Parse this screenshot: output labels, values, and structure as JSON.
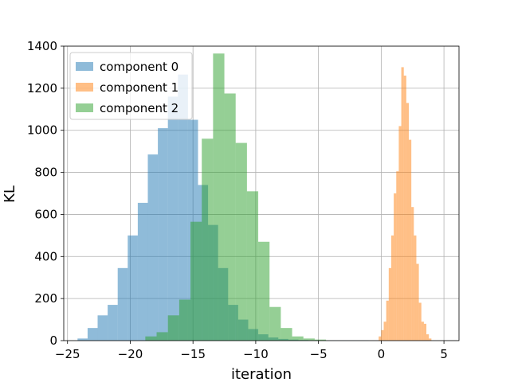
{
  "chart_data": {
    "type": "histogram",
    "xlabel": "iteration",
    "ylabel": "KL",
    "xlim": [
      -25.3,
      6.2
    ],
    "ylim": [
      0,
      1400
    ],
    "xticks": [
      -25,
      -20,
      -15,
      -10,
      -5,
      0,
      5
    ],
    "yticks": [
      0,
      200,
      400,
      600,
      800,
      1000,
      1200,
      1400
    ],
    "grid": true,
    "legend_position": "upper-left",
    "series": [
      {
        "name": "component 0",
        "color": "#1f77b4",
        "alpha": 0.5,
        "bins": [
          {
            "x0": -24.2,
            "x1": -23.4,
            "count": 10
          },
          {
            "x0": -23.4,
            "x1": -22.6,
            "count": 60
          },
          {
            "x0": -22.6,
            "x1": -21.8,
            "count": 120
          },
          {
            "x0": -21.8,
            "x1": -21.0,
            "count": 170
          },
          {
            "x0": -21.0,
            "x1": -20.2,
            "count": 345
          },
          {
            "x0": -20.2,
            "x1": -19.4,
            "count": 500
          },
          {
            "x0": -19.4,
            "x1": -18.6,
            "count": 655
          },
          {
            "x0": -18.6,
            "x1": -17.8,
            "count": 885
          },
          {
            "x0": -17.8,
            "x1": -17.0,
            "count": 1010
          },
          {
            "x0": -17.0,
            "x1": -16.2,
            "count": 1160
          },
          {
            "x0": -16.2,
            "x1": -15.4,
            "count": 1265
          },
          {
            "x0": -15.4,
            "x1": -14.6,
            "count": 1050
          },
          {
            "x0": -14.6,
            "x1": -13.8,
            "count": 740
          },
          {
            "x0": -13.8,
            "x1": -13.0,
            "count": 550
          },
          {
            "x0": -13.0,
            "x1": -12.2,
            "count": 345
          },
          {
            "x0": -12.2,
            "x1": -11.4,
            "count": 170
          },
          {
            "x0": -11.4,
            "x1": -10.6,
            "count": 100
          },
          {
            "x0": -10.6,
            "x1": -9.8,
            "count": 55
          },
          {
            "x0": -9.8,
            "x1": -9.0,
            "count": 30
          },
          {
            "x0": -9.0,
            "x1": -8.2,
            "count": 15
          },
          {
            "x0": -8.2,
            "x1": -7.4,
            "count": 8
          },
          {
            "x0": -7.4,
            "x1": -6.6,
            "count": 5
          },
          {
            "x0": -6.6,
            "x1": -5.8,
            "count": 3
          },
          {
            "x0": -5.8,
            "x1": -5.0,
            "count": 2
          },
          {
            "x0": -5.0,
            "x1": -4.2,
            "count": 1
          },
          {
            "x0": -4.2,
            "x1": -3.4,
            "count": 1
          },
          {
            "x0": -3.4,
            "x1": -2.6,
            "count": 1
          },
          {
            "x0": -2.6,
            "x1": -1.8,
            "count": 1
          },
          {
            "x0": -1.8,
            "x1": -1.0,
            "count": 1
          }
        ]
      },
      {
        "name": "component 1",
        "color": "#ff7f0e",
        "alpha": 0.5,
        "bins": [
          {
            "x0": -0.2,
            "x1": 0.0,
            "count": 20
          },
          {
            "x0": 0.0,
            "x1": 0.2,
            "count": 50
          },
          {
            "x0": 0.2,
            "x1": 0.4,
            "count": 90
          },
          {
            "x0": 0.4,
            "x1": 0.6,
            "count": 190
          },
          {
            "x0": 0.6,
            "x1": 0.8,
            "count": 345
          },
          {
            "x0": 0.8,
            "x1": 1.0,
            "count": 500
          },
          {
            "x0": 1.0,
            "x1": 1.2,
            "count": 700
          },
          {
            "x0": 1.2,
            "x1": 1.4,
            "count": 805
          },
          {
            "x0": 1.4,
            "x1": 1.6,
            "count": 1020
          },
          {
            "x0": 1.6,
            "x1": 1.8,
            "count": 1300
          },
          {
            "x0": 1.8,
            "x1": 2.0,
            "count": 1260
          },
          {
            "x0": 2.0,
            "x1": 2.2,
            "count": 1130
          },
          {
            "x0": 2.2,
            "x1": 2.4,
            "count": 955
          },
          {
            "x0": 2.4,
            "x1": 2.6,
            "count": 635
          },
          {
            "x0": 2.6,
            "x1": 2.8,
            "count": 500
          },
          {
            "x0": 2.8,
            "x1": 3.0,
            "count": 365
          },
          {
            "x0": 3.0,
            "x1": 3.2,
            "count": 180
          },
          {
            "x0": 3.2,
            "x1": 3.4,
            "count": 90
          },
          {
            "x0": 3.4,
            "x1": 3.6,
            "count": 80
          },
          {
            "x0": 3.6,
            "x1": 3.8,
            "count": 30
          },
          {
            "x0": 3.8,
            "x1": 4.0,
            "count": 10
          }
        ]
      },
      {
        "name": "component 2",
        "color": "#2ca02c",
        "alpha": 0.5,
        "bins": [
          {
            "x0": -18.8,
            "x1": -17.9,
            "count": 20
          },
          {
            "x0": -17.9,
            "x1": -17.0,
            "count": 40
          },
          {
            "x0": -17.0,
            "x1": -16.1,
            "count": 120
          },
          {
            "x0": -16.1,
            "x1": -15.2,
            "count": 195
          },
          {
            "x0": -15.2,
            "x1": -14.3,
            "count": 565
          },
          {
            "x0": -14.3,
            "x1": -13.4,
            "count": 960
          },
          {
            "x0": -13.4,
            "x1": -12.5,
            "count": 1365
          },
          {
            "x0": -12.5,
            "x1": -11.6,
            "count": 1175
          },
          {
            "x0": -11.6,
            "x1": -10.7,
            "count": 940
          },
          {
            "x0": -10.7,
            "x1": -9.8,
            "count": 710
          },
          {
            "x0": -9.8,
            "x1": -8.9,
            "count": 470
          },
          {
            "x0": -8.9,
            "x1": -8.0,
            "count": 160
          },
          {
            "x0": -8.0,
            "x1": -7.1,
            "count": 60
          },
          {
            "x0": -7.1,
            "x1": -6.2,
            "count": 20
          },
          {
            "x0": -6.2,
            "x1": -5.3,
            "count": 10
          },
          {
            "x0": -5.3,
            "x1": -4.4,
            "count": 5
          }
        ]
      }
    ]
  }
}
